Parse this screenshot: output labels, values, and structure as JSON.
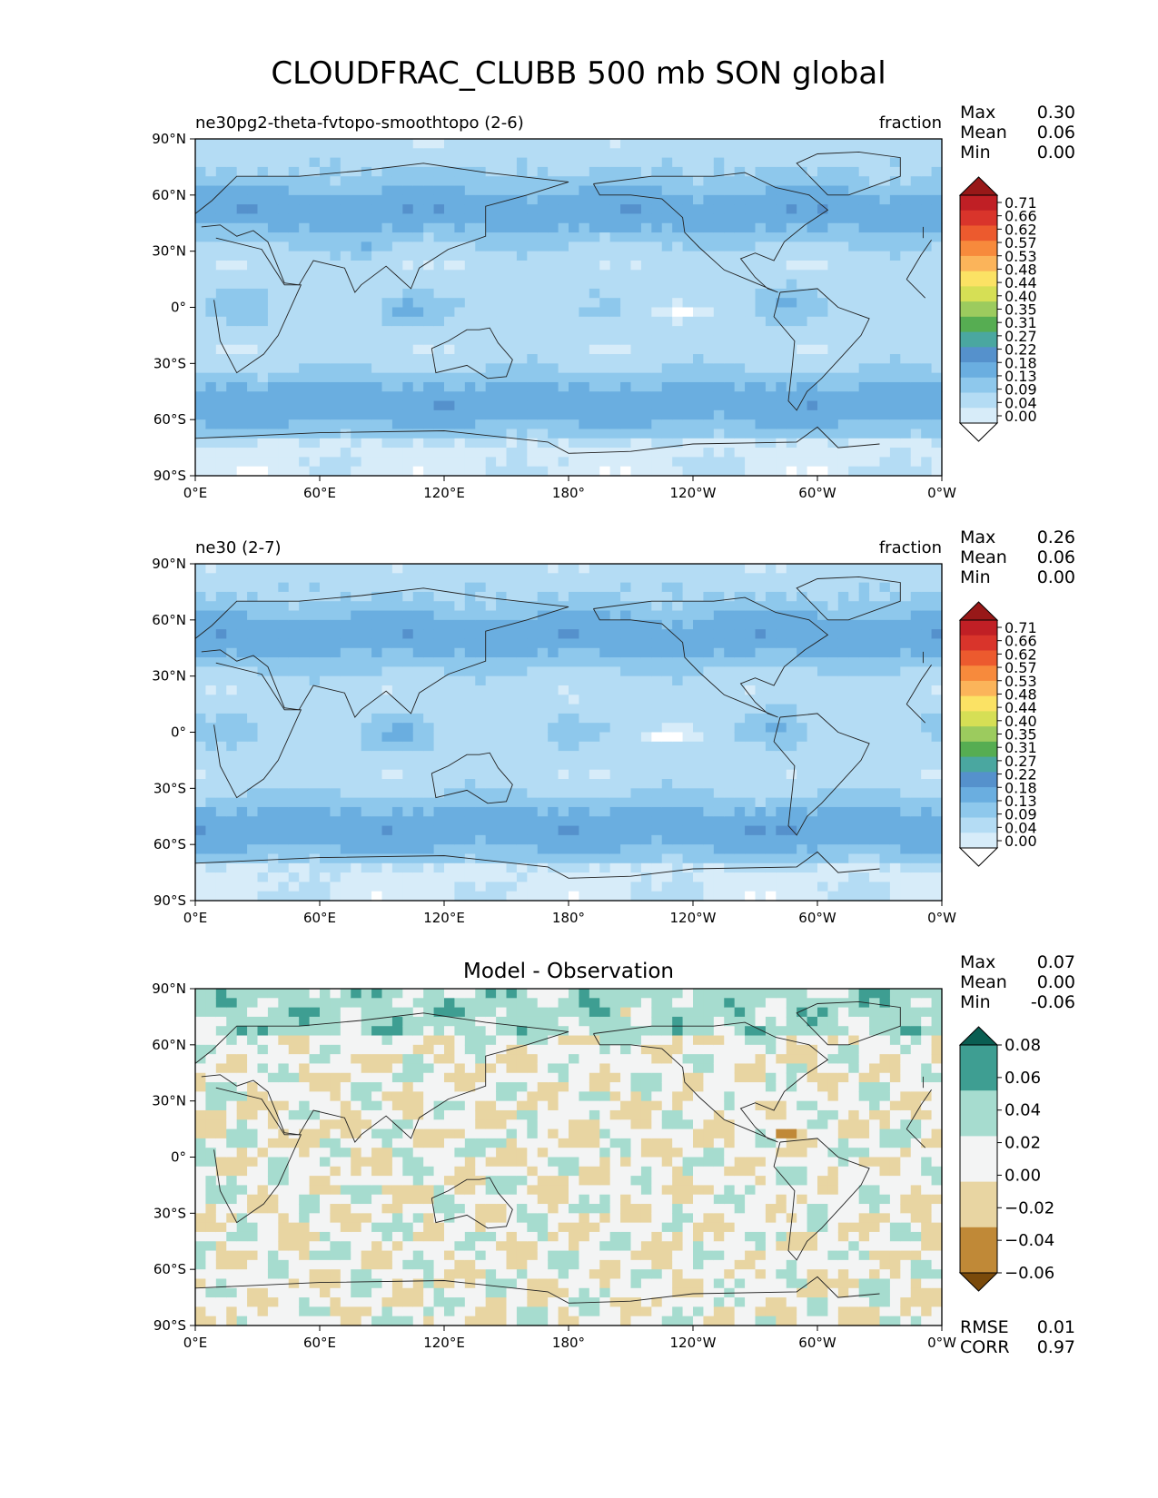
{
  "title": "CLOUDFRAC_CLUBB 500 mb SON global",
  "stats_labels": {
    "max": "Max",
    "mean": "Mean",
    "min": "Min",
    "rmse": "RMSE",
    "corr": "CORR"
  },
  "colors": {
    "land_outline": "#222222",
    "seq": [
      "#ffffff",
      "#d7ecf9",
      "#b4dcf4",
      "#8ec8ec",
      "#6aaee0",
      "#5591cc",
      "#4aa7a0",
      "#56ad52",
      "#9ccb5e",
      "#d6df55",
      "#fbe264",
      "#fbb45a",
      "#f78a3c",
      "#ec5a2e",
      "#d9342b",
      "#c01f25",
      "#981818"
    ],
    "div": [
      "#7a4a0b",
      "#c08937",
      "#e8d5a2",
      "#f3f4f4",
      "#a6dccf",
      "#3e9e92",
      "#0a5e52"
    ]
  },
  "chart_data": [
    {
      "type": "heatmap",
      "panel": "test",
      "left_title": "ne30pg2-theta-fvtopo-smoothtopo (2-6)",
      "center_title": "",
      "right_title": "fraction",
      "stats": {
        "max": "0.30",
        "mean": "0.06",
        "min": "0.00"
      },
      "colorbar": {
        "ticks": [
          "0.71",
          "0.66",
          "0.62",
          "0.57",
          "0.53",
          "0.48",
          "0.44",
          "0.40",
          "0.35",
          "0.31",
          "0.27",
          "0.22",
          "0.18",
          "0.13",
          "0.09",
          "0.04",
          "0.00"
        ],
        "extend": "both",
        "scheme": "seq"
      },
      "x_ticks": [
        "0°E",
        "60°E",
        "120°E",
        "180°",
        "120°W",
        "60°W",
        "0°W"
      ],
      "y_ticks": [
        "90°N",
        "60°N",
        "30°N",
        "0°",
        "30°S",
        "60°S",
        "90°S"
      ],
      "xlim": [
        0,
        360
      ],
      "ylim": [
        -90,
        90
      ]
    },
    {
      "type": "heatmap",
      "panel": "reference",
      "left_title": "ne30 (2-7)",
      "center_title": "",
      "right_title": "fraction",
      "stats": {
        "max": "0.26",
        "mean": "0.06",
        "min": "0.00"
      },
      "colorbar": {
        "ticks": [
          "0.71",
          "0.66",
          "0.62",
          "0.57",
          "0.53",
          "0.48",
          "0.44",
          "0.40",
          "0.35",
          "0.31",
          "0.27",
          "0.22",
          "0.18",
          "0.13",
          "0.09",
          "0.04",
          "0.00"
        ],
        "extend": "both",
        "scheme": "seq"
      },
      "x_ticks": [
        "0°E",
        "60°E",
        "120°E",
        "180°",
        "120°W",
        "60°W",
        "0°W"
      ],
      "y_ticks": [
        "90°N",
        "60°N",
        "30°N",
        "0°",
        "30°S",
        "60°S",
        "90°S"
      ],
      "xlim": [
        0,
        360
      ],
      "ylim": [
        -90,
        90
      ]
    },
    {
      "type": "heatmap",
      "panel": "difference",
      "left_title": "",
      "center_title": "Model - Observation",
      "right_title": "",
      "stats": {
        "max": "0.07",
        "mean": "0.00",
        "min": "-0.06"
      },
      "extra_stats": {
        "rmse": "0.01",
        "corr": "0.97"
      },
      "colorbar": {
        "ticks": [
          "0.08",
          "0.06",
          "0.04",
          "0.02",
          "0.00",
          "−0.02",
          "−0.04",
          "−0.06"
        ],
        "extend": "both",
        "scheme": "div"
      },
      "x_ticks": [
        "0°E",
        "60°E",
        "120°E",
        "180°",
        "120°W",
        "60°W",
        "0°W"
      ],
      "y_ticks": [
        "90°N",
        "60°N",
        "30°N",
        "0°",
        "30°S",
        "60°S",
        "90°S"
      ],
      "xlim": [
        0,
        360
      ],
      "ylim": [
        -90,
        90
      ]
    }
  ]
}
